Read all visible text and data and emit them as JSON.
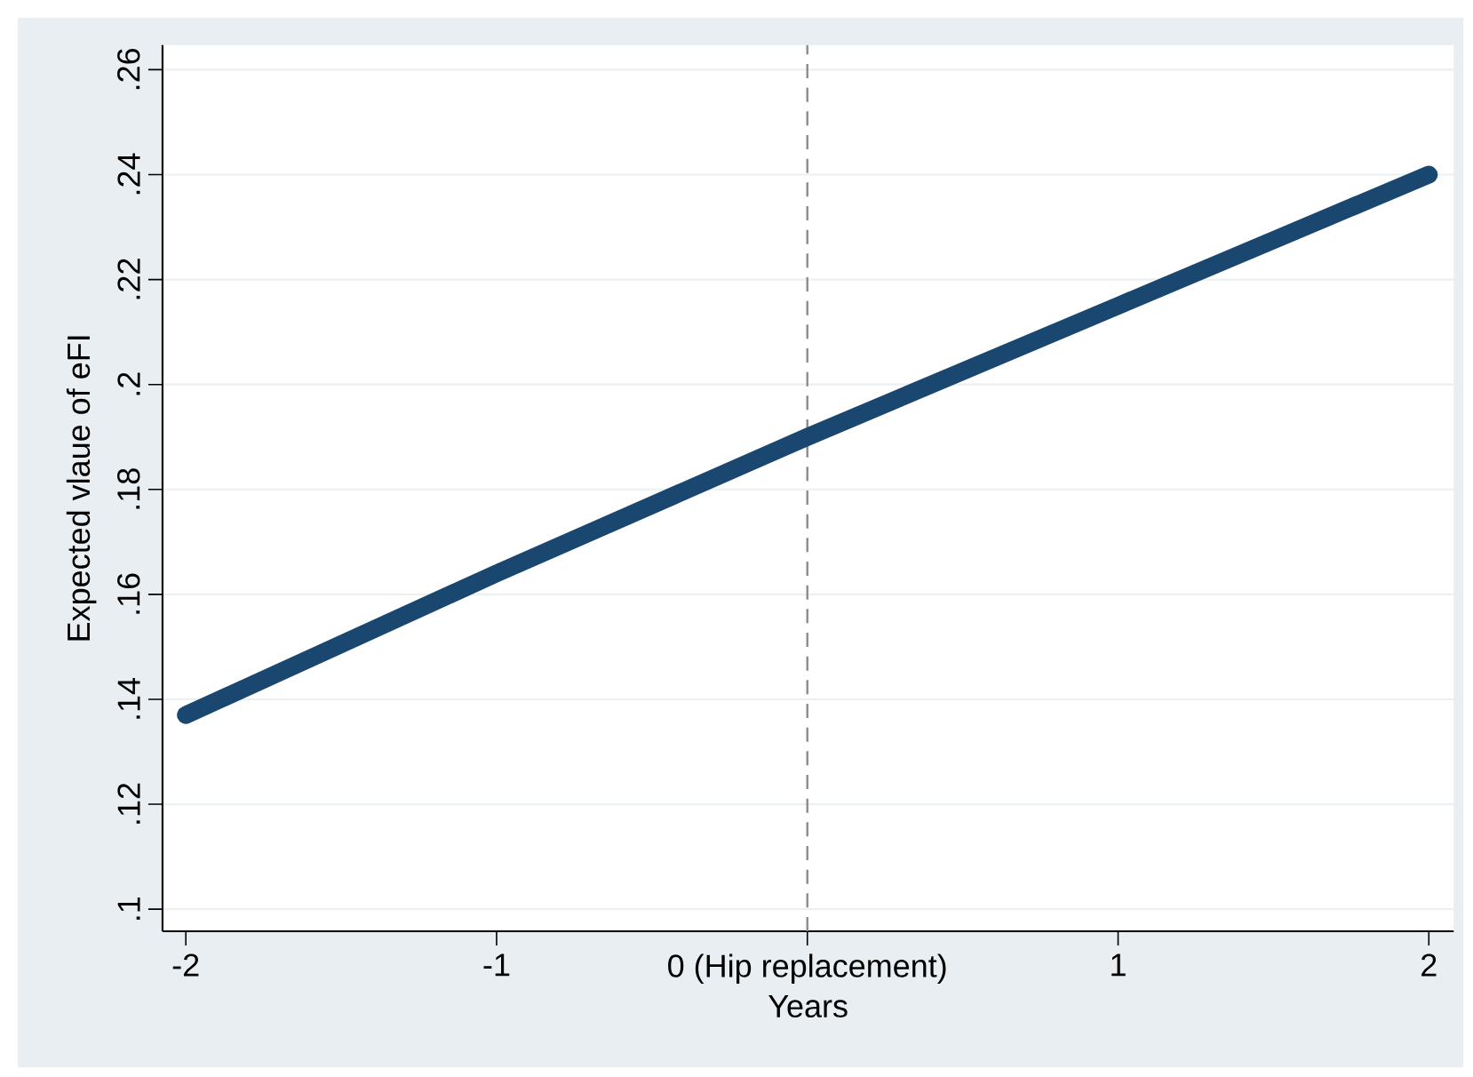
{
  "chart_data": {
    "type": "line",
    "xlabel": "Years",
    "ylabel": "Expected vlaue of eFI",
    "x": [
      -2,
      -1,
      0,
      1,
      2
    ],
    "series": [
      {
        "color": "#1a476f",
        "values": [
          0.137,
          0.164,
          0.19,
          0.215,
          0.24
        ]
      }
    ],
    "xlim": [
      -2.075,
      2.08
    ],
    "xticks": [
      -2,
      -1,
      {
        "value": 0,
        "label": "0 (Hip replacement)"
      },
      1,
      2
    ],
    "ylim": [
      0.0958,
      0.2647
    ],
    "yticks": [
      {
        "value": 0.1,
        "label": ".1"
      },
      {
        "value": 0.12,
        "label": ".12"
      },
      {
        "value": 0.14,
        "label": ".14"
      },
      {
        "value": 0.16,
        "label": ".16"
      },
      {
        "value": 0.18,
        "label": ".18"
      },
      {
        "value": 0.2,
        "label": ".2"
      },
      {
        "value": 0.22,
        "label": ".22"
      },
      {
        "value": 0.24,
        "label": ".24"
      },
      {
        "value": 0.26,
        "label": ".26"
      }
    ],
    "ref_lines": [
      {
        "axis": "x",
        "value": 0,
        "color": "#8c8c8c",
        "line_style": "dashed"
      }
    ],
    "grid": "y",
    "marker": "none",
    "line_style": "solid"
  }
}
